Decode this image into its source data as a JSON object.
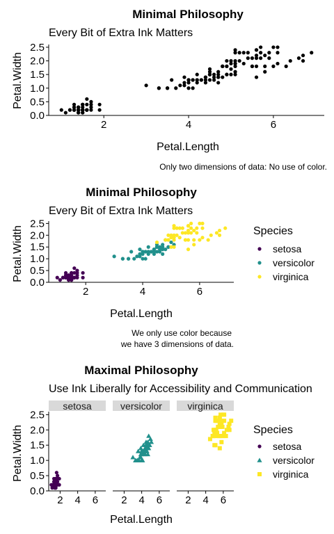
{
  "chart_data": [
    {
      "type": "scatter",
      "title": "Minimal Philosophy",
      "subtitle": "Every Bit of Extra Ink Matters",
      "xlabel": "Petal.Length",
      "ylabel": "Petal.Width",
      "xlim": [
        0.7,
        7.2
      ],
      "ylim": [
        0,
        2.6
      ],
      "x_ticks": [
        2,
        4,
        6
      ],
      "y_ticks": [
        0.0,
        0.5,
        1.0,
        1.5,
        2.0,
        2.5
      ],
      "grid": false,
      "color_by_group": false,
      "caption": [
        "Only two dimensions of data: No use of color."
      ],
      "legend": null
    },
    {
      "type": "scatter",
      "title": "Minimal Philosophy",
      "subtitle": "Every Bit of Extra Ink Matters",
      "xlabel": "Petal.Length",
      "ylabel": "Petal.Width",
      "xlim": [
        0.7,
        7.2
      ],
      "ylim": [
        0,
        2.6
      ],
      "x_ticks": [
        2,
        4,
        6
      ],
      "y_ticks": [
        0.0,
        0.5,
        1.0,
        1.5,
        2.0,
        2.5
      ],
      "grid": false,
      "color_by_group": true,
      "caption": [
        "We only use color because",
        "we have 3 dimensions of data."
      ],
      "legend": {
        "title": "Species",
        "placement": "right"
      }
    },
    {
      "type": "scatter",
      "title": "Maximal Philosophy",
      "subtitle": "Use Ink Liberally for Accessibility and Communication",
      "xlabel": "Petal.Length",
      "ylabel": "Petal.Width",
      "xlim": [
        0.7,
        7.2
      ],
      "ylim": [
        0,
        2.6
      ],
      "x_ticks": [
        2,
        4,
        6
      ],
      "y_ticks": [
        0.0,
        0.5,
        1.0,
        1.5,
        2.0,
        2.5
      ],
      "grid": false,
      "faceted": true,
      "facets": [
        "setosa",
        "versicolor",
        "virginica"
      ],
      "shape_by_group": true,
      "legend": {
        "title": "Species",
        "placement": "right"
      }
    }
  ],
  "species": [
    {
      "name": "setosa",
      "color": "#440154",
      "shape": "circle"
    },
    {
      "name": "versicolor",
      "color": "#21908C",
      "shape": "triangle"
    },
    {
      "name": "virginica",
      "color": "#FDE725",
      "shape": "square"
    }
  ],
  "points": {
    "setosa": [
      [
        1.4,
        0.2
      ],
      [
        1.4,
        0.2
      ],
      [
        1.3,
        0.2
      ],
      [
        1.5,
        0.2
      ],
      [
        1.4,
        0.2
      ],
      [
        1.7,
        0.4
      ],
      [
        1.4,
        0.3
      ],
      [
        1.5,
        0.2
      ],
      [
        1.4,
        0.2
      ],
      [
        1.5,
        0.1
      ],
      [
        1.5,
        0.2
      ],
      [
        1.6,
        0.2
      ],
      [
        1.4,
        0.1
      ],
      [
        1.1,
        0.1
      ],
      [
        1.2,
        0.2
      ],
      [
        1.5,
        0.4
      ],
      [
        1.3,
        0.4
      ],
      [
        1.4,
        0.3
      ],
      [
        1.7,
        0.3
      ],
      [
        1.5,
        0.3
      ],
      [
        1.7,
        0.2
      ],
      [
        1.5,
        0.4
      ],
      [
        1.0,
        0.2
      ],
      [
        1.7,
        0.5
      ],
      [
        1.9,
        0.2
      ],
      [
        1.6,
        0.2
      ],
      [
        1.6,
        0.4
      ],
      [
        1.5,
        0.2
      ],
      [
        1.4,
        0.2
      ],
      [
        1.6,
        0.2
      ],
      [
        1.6,
        0.2
      ],
      [
        1.5,
        0.4
      ],
      [
        1.5,
        0.1
      ],
      [
        1.4,
        0.2
      ],
      [
        1.5,
        0.2
      ],
      [
        1.2,
        0.2
      ],
      [
        1.3,
        0.2
      ],
      [
        1.4,
        0.1
      ],
      [
        1.3,
        0.2
      ],
      [
        1.5,
        0.2
      ],
      [
        1.3,
        0.3
      ],
      [
        1.3,
        0.3
      ],
      [
        1.3,
        0.2
      ],
      [
        1.6,
        0.6
      ],
      [
        1.9,
        0.4
      ],
      [
        1.4,
        0.3
      ],
      [
        1.6,
        0.2
      ],
      [
        1.4,
        0.2
      ],
      [
        1.5,
        0.2
      ],
      [
        1.4,
        0.2
      ]
    ],
    "versicolor": [
      [
        4.7,
        1.4
      ],
      [
        4.5,
        1.5
      ],
      [
        4.9,
        1.5
      ],
      [
        4.0,
        1.3
      ],
      [
        4.6,
        1.5
      ],
      [
        4.5,
        1.3
      ],
      [
        4.7,
        1.6
      ],
      [
        3.3,
        1.0
      ],
      [
        4.6,
        1.3
      ],
      [
        3.9,
        1.4
      ],
      [
        3.5,
        1.0
      ],
      [
        4.2,
        1.5
      ],
      [
        4.0,
        1.0
      ],
      [
        4.7,
        1.4
      ],
      [
        3.6,
        1.3
      ],
      [
        4.4,
        1.4
      ],
      [
        4.5,
        1.5
      ],
      [
        4.1,
        1.0
      ],
      [
        4.5,
        1.5
      ],
      [
        3.9,
        1.1
      ],
      [
        4.8,
        1.8
      ],
      [
        4.0,
        1.3
      ],
      [
        4.9,
        1.5
      ],
      [
        4.7,
        1.2
      ],
      [
        4.3,
        1.3
      ],
      [
        4.4,
        1.4
      ],
      [
        4.8,
        1.4
      ],
      [
        5.0,
        1.7
      ],
      [
        4.5,
        1.5
      ],
      [
        3.5,
        1.0
      ],
      [
        3.8,
        1.1
      ],
      [
        3.7,
        1.0
      ],
      [
        3.9,
        1.2
      ],
      [
        5.1,
        1.6
      ],
      [
        4.5,
        1.5
      ],
      [
        4.5,
        1.6
      ],
      [
        4.7,
        1.5
      ],
      [
        4.4,
        1.3
      ],
      [
        4.1,
        1.3
      ],
      [
        4.0,
        1.3
      ],
      [
        4.4,
        1.2
      ],
      [
        4.6,
        1.4
      ],
      [
        4.0,
        1.2
      ],
      [
        3.3,
        1.0
      ],
      [
        4.2,
        1.3
      ],
      [
        4.2,
        1.2
      ],
      [
        4.2,
        1.3
      ],
      [
        4.3,
        1.3
      ],
      [
        3.0,
        1.1
      ],
      [
        4.1,
        1.3
      ]
    ],
    "virginica": [
      [
        6.0,
        2.5
      ],
      [
        5.1,
        1.9
      ],
      [
        5.9,
        2.1
      ],
      [
        5.6,
        1.8
      ],
      [
        5.8,
        2.2
      ],
      [
        6.6,
        2.1
      ],
      [
        4.5,
        1.7
      ],
      [
        6.3,
        1.8
      ],
      [
        5.8,
        1.8
      ],
      [
        6.1,
        2.5
      ],
      [
        5.1,
        2.0
      ],
      [
        5.3,
        1.9
      ],
      [
        5.5,
        2.1
      ],
      [
        5.0,
        2.0
      ],
      [
        5.1,
        2.4
      ],
      [
        5.3,
        2.3
      ],
      [
        5.5,
        1.8
      ],
      [
        6.7,
        2.2
      ],
      [
        6.9,
        2.3
      ],
      [
        5.0,
        1.5
      ],
      [
        5.7,
        2.3
      ],
      [
        4.9,
        2.0
      ],
      [
        6.7,
        2.0
      ],
      [
        4.9,
        1.8
      ],
      [
        5.7,
        2.1
      ],
      [
        6.0,
        1.8
      ],
      [
        4.8,
        1.8
      ],
      [
        4.9,
        1.8
      ],
      [
        5.6,
        2.1
      ],
      [
        5.8,
        1.6
      ],
      [
        6.1,
        1.9
      ],
      [
        6.4,
        2.0
      ],
      [
        5.6,
        2.2
      ],
      [
        5.1,
        1.5
      ],
      [
        5.6,
        1.4
      ],
      [
        6.1,
        2.3
      ],
      [
        5.6,
        2.4
      ],
      [
        5.5,
        1.8
      ],
      [
        4.8,
        1.8
      ],
      [
        5.4,
        2.1
      ],
      [
        5.6,
        2.4
      ],
      [
        5.1,
        2.3
      ],
      [
        5.1,
        1.9
      ],
      [
        5.9,
        2.3
      ],
      [
        5.7,
        2.5
      ],
      [
        5.2,
        2.3
      ],
      [
        5.0,
        1.9
      ],
      [
        5.2,
        2.0
      ],
      [
        5.4,
        2.3
      ],
      [
        5.1,
        1.8
      ]
    ]
  }
}
